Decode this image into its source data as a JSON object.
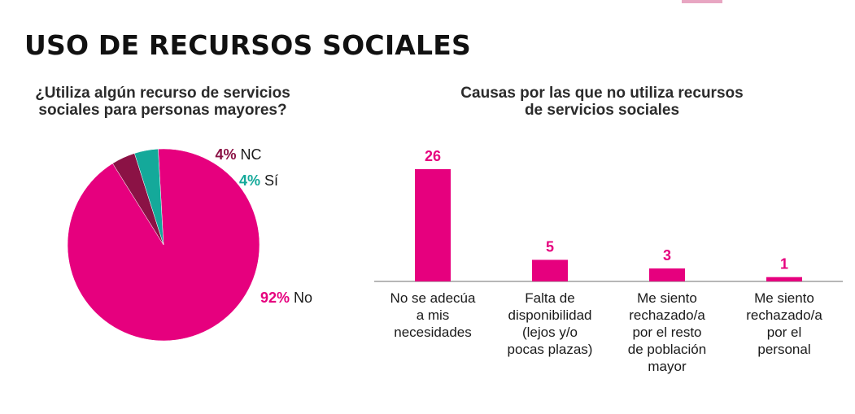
{
  "page": {
    "title": "USO DE RECURSOS SOCIALES"
  },
  "colors": {
    "primary": "#E6007E",
    "dark": "#8B1245",
    "teal": "#14A99A",
    "axis": "#8c8c8c"
  },
  "chart_data": [
    {
      "type": "pie",
      "title_lines": [
        "¿Utiliza algún recurso de servicios",
        "sociales para personas mayores?"
      ],
      "slices": [
        {
          "label": "No",
          "value": 92,
          "value_label": "92%",
          "color": "#E6007E"
        },
        {
          "label": "NC",
          "value": 4,
          "value_label": "4%",
          "color": "#8B1245"
        },
        {
          "label": "Sí",
          "value": 4,
          "value_label": "4%",
          "color": "#14A99A"
        }
      ]
    },
    {
      "type": "bar",
      "title_lines": [
        "Causas por las que no utiliza recursos",
        "de servicios sociales"
      ],
      "categories": [
        [
          "No se adecúa",
          "a mis",
          "necesidades"
        ],
        [
          "Falta de",
          "disponibilidad",
          "(lejos y/o",
          "pocas plazas)"
        ],
        [
          "Me siento",
          "rechazado/a",
          "por el resto",
          "de población",
          "mayor"
        ],
        [
          "Me siento",
          "rechazado/a",
          "por el",
          "personal"
        ]
      ],
      "values": [
        26,
        5,
        3,
        1
      ],
      "value_labels": [
        "26",
        "5",
        "3",
        "1"
      ],
      "ylim": [
        0,
        26
      ]
    }
  ]
}
